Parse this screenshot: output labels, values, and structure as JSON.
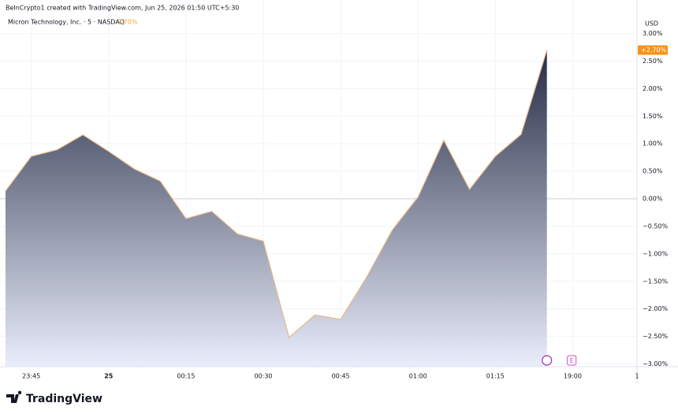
{
  "header": {
    "credit": "BeInCrypto1 created with TradingView.com, Jun 25, 2026 01:50 UTC+5:30"
  },
  "chart_data": {
    "type": "area",
    "title": "Micron Technology, Inc. · 5 · NASDAQ",
    "change_label": "2.70%",
    "currency": "USD",
    "last_label": "+2.70%",
    "event_label": "E",
    "categories": [
      null,
      "23:45",
      null,
      null,
      "25",
      null,
      null,
      "00:15",
      null,
      null,
      "00:30",
      null,
      null,
      "00:45",
      null,
      null,
      "01:00",
      null,
      null,
      "01:15",
      null,
      null,
      "19:00",
      null,
      null,
      "1"
    ],
    "values": [
      0.14,
      0.77,
      0.89,
      1.16,
      0.86,
      0.54,
      0.32,
      -0.36,
      -0.23,
      -0.64,
      -0.77,
      -2.52,
      -2.11,
      -2.19,
      -1.43,
      -0.57,
      0.03,
      1.06,
      0.17,
      0.77,
      1.17,
      2.7,
      null,
      null,
      null,
      null
    ],
    "line_color": "#e8b98c",
    "fill_top": "#252c44",
    "fill_bottom": "#e9edfc",
    "ylim": [
      -3.05,
      3.18
    ],
    "yticks": [
      {
        "value": 3,
        "label": "3.00%"
      },
      {
        "value": 2.5,
        "label": "2.50%"
      },
      {
        "value": 2,
        "label": "2.00%"
      },
      {
        "value": 1.5,
        "label": "1.50%"
      },
      {
        "value": 1,
        "label": "1.00%"
      },
      {
        "value": 0.5,
        "label": "0.50%"
      },
      {
        "value": 0,
        "label": "0.00%"
      },
      {
        "value": -0.5,
        "label": "−0.50%"
      },
      {
        "value": -1,
        "label": "−1.00%"
      },
      {
        "value": -1.5,
        "label": "−1.50%"
      },
      {
        "value": -2,
        "label": "−2.00%"
      },
      {
        "value": -2.5,
        "label": "−2.50%"
      },
      {
        "value": -3,
        "label": "−3.00%"
      }
    ],
    "grid": true
  },
  "logo": "TradingView"
}
